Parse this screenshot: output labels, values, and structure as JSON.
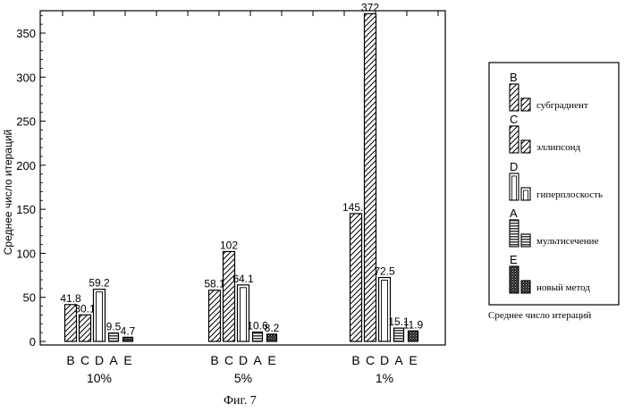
{
  "chart_data": {
    "type": "bar",
    "ylabel": "Среднее число итераций",
    "ylim": [
      0,
      380
    ],
    "yticks": [
      0,
      50,
      100,
      150,
      200,
      250,
      300,
      350
    ],
    "method_order": [
      "B",
      "C",
      "D",
      "A",
      "E"
    ],
    "groups": [
      {
        "label": "10%",
        "values": [
          41.8,
          30.1,
          59.2,
          9.5,
          4.7
        ],
        "value_labels": [
          "41.8",
          "30.1",
          "59.2",
          "9.5",
          "4.7"
        ]
      },
      {
        "label": "5%",
        "values": [
          58.1,
          102,
          64.1,
          10.6,
          8.2
        ],
        "value_labels": [
          "58.1",
          "102",
          "64.1",
          "10.6",
          "8.2"
        ]
      },
      {
        "label": "1%",
        "values": [
          145.1,
          372,
          72.5,
          15.1,
          11.9
        ],
        "value_labels": [
          "145.1",
          "372",
          "72.5",
          "15.1",
          "11.9"
        ]
      }
    ],
    "legend": {
      "placement": "right",
      "entries": [
        {
          "letter": "B",
          "name": "субградиент",
          "pattern": "diagonal-hatch"
        },
        {
          "letter": "C",
          "name": "эллипсонд",
          "pattern": "diagonal-hatch"
        },
        {
          "letter": "D",
          "name": "гиперплоскость",
          "pattern": "hollow-double"
        },
        {
          "letter": "A",
          "name": "мультисечение",
          "pattern": "horizontal-lines"
        },
        {
          "letter": "E",
          "name": "новый метод",
          "pattern": "crosshatch-dark"
        }
      ],
      "caption": "Среднее  число итераций"
    },
    "figure_caption": "Фиг. 7"
  }
}
